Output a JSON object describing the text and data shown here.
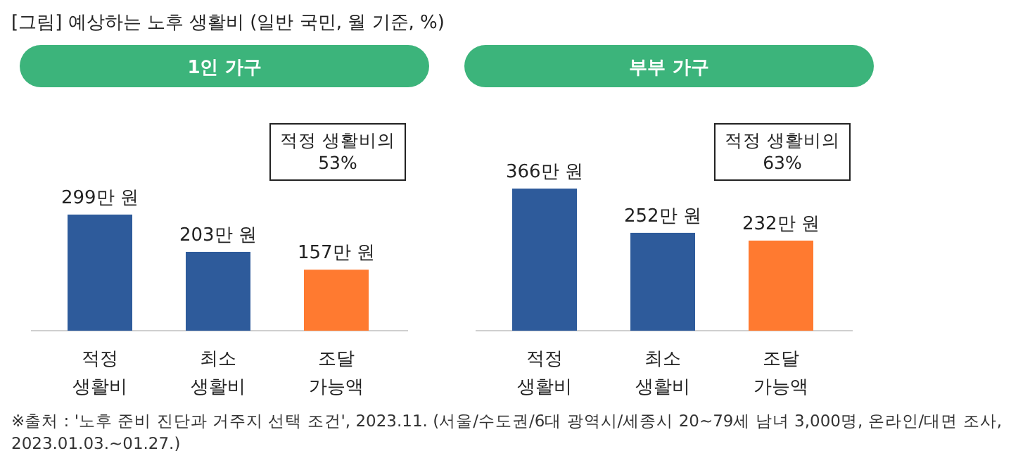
{
  "chart_data": [
    {
      "type": "bar",
      "title": "[그림] 예상하는 노후 생활비 (일반 국민, 월 기준, %)",
      "subtitle": "1인 가구",
      "categories": [
        "적정 생활비",
        "최소 생활비",
        "조달 가능액"
      ],
      "values": [
        299,
        203,
        157
      ],
      "colors": [
        "#2e5b9b",
        "#2e5b9b",
        "#ff7a30"
      ],
      "value_labels": [
        "299만 원",
        "203만 원",
        "157만 원"
      ],
      "annotations": [
        "적정 생활비의 53%"
      ]
    },
    {
      "type": "bar",
      "subtitle": "부부 가구",
      "categories": [
        "적정 생활비",
        "최소 생활비",
        "조달 가능액"
      ],
      "values": [
        366,
        252,
        232
      ],
      "colors": [
        "#2e5b9b",
        "#2e5b9b",
        "#ff7a30"
      ],
      "value_labels": [
        "366만 원",
        "252만 원",
        "232만 원"
      ],
      "annotations": [
        "적정 생활비의 63%",
        "※출처 : '노후 준비 진단과 거주지 선택 조건', 2023.11. (서울/수도권/6대 광역시/세종시 20~79세 남녀 3,000명, 온라인/대면 조사, 2023.01.03.~01.27.)"
      ]
    }
  ]
}
